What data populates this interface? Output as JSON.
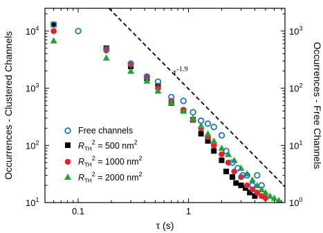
{
  "chart_data": {
    "type": "scatter",
    "xlabel": "τ (s)",
    "ylabel_left": "Occurrences - Clustered Channels",
    "ylabel_right": "Occurrences - Free Channels",
    "x_scale": "log",
    "y_scale_left": "log",
    "y_scale_right": "log",
    "xlim": [
      0.05,
      7.5
    ],
    "ylim_left": [
      10,
      25000
    ],
    "ylim_right": [
      1,
      2500
    ],
    "x_ticks": [
      {
        "value": 0.1,
        "label": "0.1"
      },
      {
        "value": 1,
        "label": "1"
      }
    ],
    "y_ticks_left": [
      {
        "value": 10,
        "base": "10",
        "exp": "1"
      },
      {
        "value": 100,
        "base": "10",
        "exp": "2"
      },
      {
        "value": 1000,
        "base": "10",
        "exp": "3"
      },
      {
        "value": 10000,
        "base": "10",
        "exp": "4"
      }
    ],
    "y_ticks_right": [
      {
        "value": 1,
        "base": "10",
        "exp": "0"
      },
      {
        "value": 10,
        "base": "10",
        "exp": "1"
      },
      {
        "value": 100,
        "base": "10",
        "exp": "2"
      },
      {
        "value": 1000,
        "base": "10",
        "exp": "3"
      }
    ],
    "grid": false,
    "legend_position": "bottom-left",
    "annotation": {
      "base": "τ",
      "exp": "-1.9"
    },
    "power_law_line": {
      "exponent": -1.9,
      "points": [
        [
          0.19,
          25000
        ],
        [
          7.5,
          19
        ]
      ]
    },
    "series": [
      {
        "label": "Free channels",
        "axis": "right",
        "marker": "open-circle",
        "color": "#1f77b4",
        "x": [
          0.06,
          0.1,
          0.18,
          0.3,
          0.42,
          0.53,
          0.7,
          0.9,
          1.1,
          1.3,
          1.5,
          1.7,
          2.0,
          2.2,
          2.5,
          2.8,
          3.1,
          3.4,
          3.8,
          4.2,
          4.6
        ],
        "y": [
          1300,
          1000,
          480,
          270,
          160,
          130,
          70,
          60,
          38,
          27,
          24,
          21,
          15,
          8,
          5,
          4,
          3,
          3,
          2,
          3,
          2
        ]
      },
      {
        "label": "R_TH² = 500 nm²",
        "label_parts": {
          "symbol": "R",
          "sub": "TH",
          "sup": "2",
          "rest": " = 500 nm",
          "unit_sup": "2"
        },
        "axis": "left",
        "marker": "square",
        "color": "#000000",
        "x": [
          0.06,
          0.18,
          0.3,
          0.42,
          0.53,
          0.7,
          0.9,
          1.1,
          1.3,
          1.5,
          1.7,
          2.0,
          2.2,
          2.5,
          2.7,
          3.0,
          3.3,
          3.6,
          4.0
        ],
        "y": [
          13000,
          5000,
          2400,
          1500,
          1100,
          550,
          400,
          280,
          160,
          120,
          80,
          55,
          35,
          28,
          22,
          20,
          18,
          15,
          13
        ]
      },
      {
        "label": "R_TH² = 1000 nm²",
        "label_parts": {
          "symbol": "R",
          "sub": "TH",
          "sup": "2",
          "rest": " = 1000 nm",
          "unit_sup": "2"
        },
        "axis": "left",
        "marker": "filled-circle",
        "color": "#e8202a",
        "x": [
          0.06,
          0.18,
          0.3,
          0.42,
          0.53,
          0.7,
          0.9,
          1.1,
          1.3,
          1.5,
          1.7,
          2.0,
          2.3,
          2.6,
          3.0,
          3.4,
          3.8,
          4.2,
          4.6,
          5.0
        ],
        "y": [
          10000,
          4600,
          2600,
          1550,
          1000,
          600,
          420,
          280,
          200,
          140,
          100,
          70,
          50,
          35,
          28,
          20,
          17,
          15,
          13,
          12
        ]
      },
      {
        "label": "R_TH² = 2000 nm²",
        "label_parts": {
          "symbol": "R",
          "sub": "TH",
          "sup": "2",
          "rest": " = 2000 nm",
          "unit_sup": "2"
        },
        "axis": "left",
        "marker": "triangle",
        "color": "#22a532",
        "x": [
          0.06,
          0.18,
          0.3,
          0.42,
          0.53,
          0.7,
          0.9,
          1.1,
          1.3,
          1.5,
          1.7,
          2.0,
          2.3,
          2.6,
          3.0,
          3.4,
          3.8,
          4.2,
          4.6,
          5.0,
          5.5,
          6.0,
          6.6
        ],
        "y": [
          6800,
          3400,
          2000,
          1350,
          900,
          560,
          400,
          300,
          220,
          160,
          120,
          90,
          70,
          55,
          40,
          32,
          25,
          20,
          17,
          15,
          13,
          12,
          11
        ]
      }
    ]
  }
}
